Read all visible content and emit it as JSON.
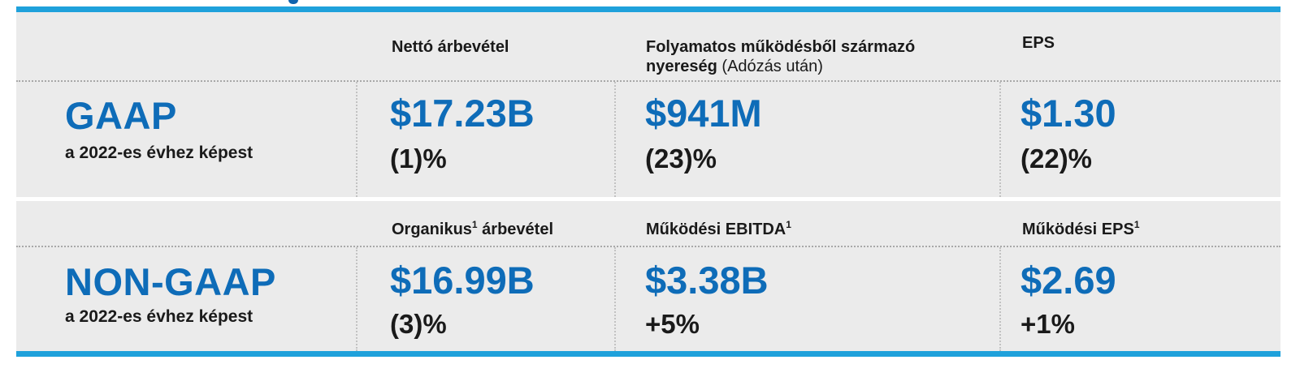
{
  "colors": {
    "accent_bar": "#1fa1db",
    "value_blue": "#0e6cb8",
    "panel_bg": "#ebebeb"
  },
  "gaap": {
    "title": "GAAP",
    "subtitle": "a 2022-es évhez képest",
    "columns": [
      {
        "header": "Nettó árbevétel",
        "value": "$17.23B",
        "change": "(1)%"
      },
      {
        "header_line1": "Folyamatos működésből származó",
        "header_bold": "nyereség",
        "header_note": "(Adózás után)",
        "value": "$941M",
        "change": "(23)%"
      },
      {
        "header": "EPS",
        "value": "$1.30",
        "change": "(22)%"
      }
    ]
  },
  "nongaap": {
    "title": "NON-GAAP",
    "subtitle": "a 2022-es évhez képest",
    "columns": [
      {
        "header_pre": "Organikus",
        "footnote": "1",
        "header_post": " árbevétel",
        "value": "$16.99B",
        "change": "(3)%"
      },
      {
        "header": "Működési EBITDA",
        "footnote": "1",
        "value": "$3.38B",
        "change": "+5%"
      },
      {
        "header": "Működési EPS",
        "footnote": "1",
        "value": "$2.69",
        "change": "+1%"
      }
    ]
  }
}
